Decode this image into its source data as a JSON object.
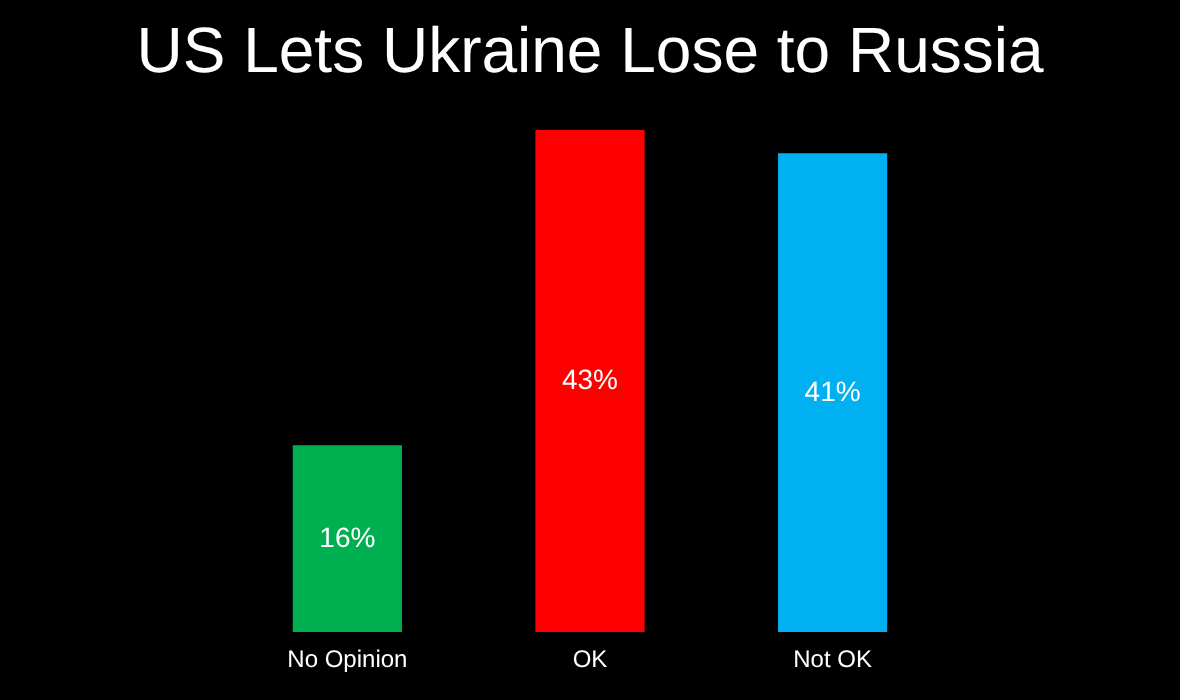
{
  "chart_data": {
    "type": "bar",
    "title": "US Lets Ukraine Lose to Russia",
    "categories": [
      "No Opinion",
      "OK",
      "Not OK"
    ],
    "values": [
      16,
      43,
      41
    ],
    "colors": [
      "#00b050",
      "#ff0000",
      "#00b0f0"
    ],
    "value_labels": [
      "16%",
      "43%",
      "41%"
    ],
    "grid": false
  }
}
